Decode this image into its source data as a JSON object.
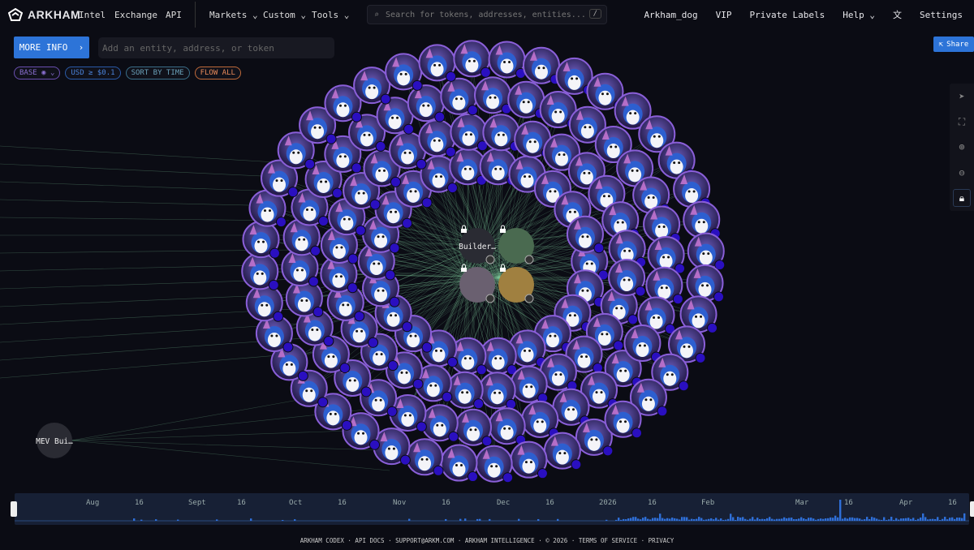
{
  "nav": {
    "brand": "ARKHAM",
    "links": [
      "Intel",
      "Exchange",
      "API"
    ],
    "menus": [
      "Markets",
      "Custom",
      "Tools"
    ],
    "search_placeholder": "Search for tokens, addresses, entities...",
    "search_shortcut": "/",
    "right": {
      "user": "Arkham_dog",
      "vip": "VIP",
      "private_labels": "Private Labels",
      "help": "Help",
      "settings": "Settings"
    }
  },
  "controls": {
    "more_info": "MORE INFO",
    "add_placeholder": "Add an entity, address, or token",
    "chips": [
      {
        "label": "BASE",
        "color": "#8a6fd0"
      },
      {
        "label": "USD ≥ $0.1",
        "color": "#3a72c8"
      },
      {
        "label": "SORT BY TIME",
        "color": "#5a8ea8"
      },
      {
        "label": "FLOW ALL",
        "color": "#e07a4a"
      }
    ],
    "share": "Share"
  },
  "toolbar": [
    "pointer-icon",
    "fit-view-icon",
    "zoom-in-icon",
    "zoom-out-icon",
    "lock-icon"
  ],
  "graph": {
    "center_label": "Builder…",
    "side_label": "MEV Bui…",
    "edge_color": "#7fc99a",
    "node_ring_color": "#8a5fd8",
    "badge_color": "#2a0fc0"
  },
  "timeline": {
    "labels": [
      "Aug",
      "16",
      "Sept",
      "16",
      "Oct",
      "16",
      "Nov",
      "16",
      "Dec",
      "16",
      "2026",
      "16",
      "Feb",
      "Mar",
      "16",
      "Apr",
      "16"
    ],
    "bar_color": "#2f6fd8"
  },
  "footer": "ARKHAM CODEX · API DOCS · SUPPORT@ARKM.COM · ARKHAM INTELLIGENCE · © 2026 · TERMS OF SERVICE · PRIVACY"
}
